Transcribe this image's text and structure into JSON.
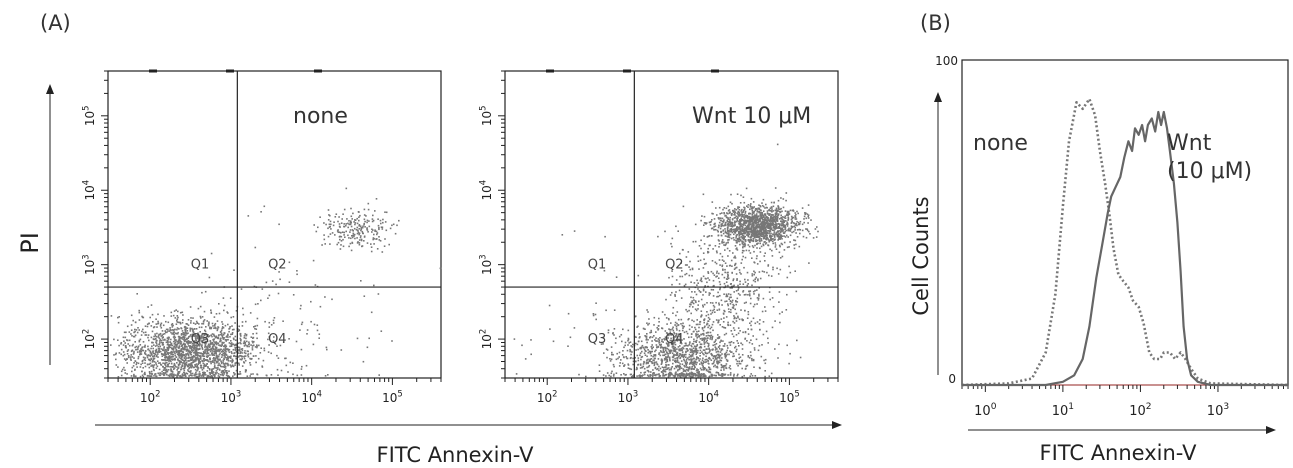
{
  "chart_data": [
    {
      "panel": "(A)",
      "type": "scatter",
      "xlabel": "FITC Annexin-V",
      "ylabel": "PI",
      "scale": "log",
      "xlim": [
        30,
        400000
      ],
      "ylim": [
        30,
        400000
      ],
      "x_tick_labels": [
        "10^2",
        "10^3",
        "10^4",
        "10^5"
      ],
      "y_tick_labels": [
        "10^2",
        "10^3",
        "10^4",
        "10^5"
      ],
      "plots": [
        {
          "annotation": "none",
          "quadrant_labels": [
            "Q1",
            "Q2",
            "Q3",
            "Q4"
          ],
          "gate": {
            "x": 1200,
            "y": 500
          },
          "populations": [
            {
              "x_center": 300,
              "y_center": 70,
              "x_spread_log": 0.42,
              "y_spread_log": 0.22,
              "n": 1900
            },
            {
              "x_center": 35000,
              "y_center": 3200,
              "x_spread_log": 0.22,
              "y_spread_log": 0.14,
              "n": 220
            },
            {
              "x_center": 4000,
              "y_center": 200,
              "x_spread_log": 0.6,
              "y_spread_log": 0.55,
              "n": 110
            }
          ]
        },
        {
          "annotation": "Wnt 10 μM",
          "quadrant_labels": [
            "Q1",
            "Q2",
            "Q3",
            "Q4"
          ],
          "gate": {
            "x": 1200,
            "y": 500
          },
          "populations": [
            {
              "x_center": 4500,
              "y_center": 60,
              "x_spread_log": 0.4,
              "y_spread_log": 0.22,
              "n": 1200
            },
            {
              "x_center": 40000,
              "y_center": 3500,
              "x_spread_log": 0.25,
              "y_spread_log": 0.13,
              "n": 1400
            },
            {
              "x_center": 15000,
              "y_center": 500,
              "x_spread_log": 0.35,
              "y_spread_log": 0.45,
              "n": 600
            },
            {
              "x_center": 300,
              "y_center": 150,
              "x_spread_log": 0.6,
              "y_spread_log": 0.5,
              "n": 40
            }
          ]
        }
      ]
    },
    {
      "panel": "(B)",
      "type": "line",
      "xlabel": "FITC Annexin-V",
      "ylabel": "Cell Counts",
      "xscale": "log",
      "xlim": [
        0.5,
        8000
      ],
      "ylim": [
        0,
        100
      ],
      "x_tick_labels": [
        "10^0",
        "10^1",
        "10^2",
        "10^3"
      ],
      "y_tick_labels": [
        "0",
        "100"
      ],
      "series": [
        {
          "name": "none",
          "style": "dotted",
          "points": [
            [
              0.5,
              0
            ],
            [
              2,
              0.5
            ],
            [
              4,
              2
            ],
            [
              6,
              10
            ],
            [
              8,
              28
            ],
            [
              10,
              55
            ],
            [
              12,
              75
            ],
            [
              15,
              87
            ],
            [
              18,
              85
            ],
            [
              22,
              88
            ],
            [
              26,
              83
            ],
            [
              30,
              72
            ],
            [
              35,
              62
            ],
            [
              40,
              52
            ],
            [
              45,
              42
            ],
            [
              52,
              34
            ],
            [
              60,
              32
            ],
            [
              70,
              30
            ],
            [
              80,
              26
            ],
            [
              95,
              24
            ],
            [
              110,
              19
            ],
            [
              130,
              10
            ],
            [
              150,
              8
            ],
            [
              180,
              8
            ],
            [
              200,
              10
            ],
            [
              240,
              10
            ],
            [
              280,
              8
            ],
            [
              330,
              10
            ],
            [
              380,
              8
            ],
            [
              450,
              5
            ],
            [
              550,
              2
            ],
            [
              800,
              0.5
            ],
            [
              8000,
              0
            ]
          ]
        },
        {
          "name": "Wnt\n(10 μM)",
          "style": "solid",
          "points": [
            [
              0.5,
              0
            ],
            [
              6,
              0
            ],
            [
              10,
              1
            ],
            [
              14,
              3
            ],
            [
              18,
              8
            ],
            [
              22,
              18
            ],
            [
              27,
              33
            ],
            [
              32,
              43
            ],
            [
              38,
              53
            ],
            [
              42,
              58
            ],
            [
              48,
              61
            ],
            [
              55,
              64
            ],
            [
              62,
              70
            ],
            [
              70,
              75
            ],
            [
              78,
              72
            ],
            [
              85,
              79
            ],
            [
              95,
              77
            ],
            [
              105,
              80
            ],
            [
              115,
              75
            ],
            [
              125,
              80
            ],
            [
              140,
              82
            ],
            [
              155,
              78
            ],
            [
              170,
              84
            ],
            [
              185,
              80
            ],
            [
              200,
              84
            ],
            [
              220,
              79
            ],
            [
              240,
              72
            ],
            [
              270,
              62
            ],
            [
              300,
              50
            ],
            [
              330,
              35
            ],
            [
              360,
              18
            ],
            [
              400,
              8
            ],
            [
              450,
              3
            ],
            [
              550,
              1
            ],
            [
              800,
              0
            ],
            [
              8000,
              0
            ]
          ]
        }
      ]
    }
  ]
}
